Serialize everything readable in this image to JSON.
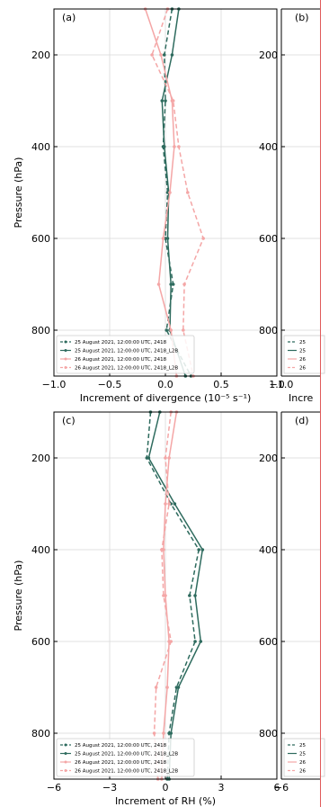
{
  "colors": {
    "green": "#2e6b5e",
    "pink": "#f4a6a6",
    "grid": "#d9d9d9",
    "axis": "#000000"
  },
  "chart_data": [
    {
      "panel_label": "(a)",
      "type": "line",
      "xlabel": "Increment of divergence (10⁻⁵ s⁻¹)",
      "ylabel": "Pressure (hPa)",
      "xlim": [
        -1.0,
        1.0
      ],
      "ylim": [
        900,
        100
      ],
      "xticks": [
        -1.0,
        -0.5,
        0.0,
        0.5,
        1.0
      ],
      "xtick_labels": [
        "−1.0",
        "−0.5",
        "0.0",
        "0.5",
        "1.0"
      ],
      "yticks": [
        200,
        400,
        600,
        800
      ],
      "y_inverted": true,
      "grid": true,
      "legend_loc": "lower-left",
      "series": [
        {
          "name": "25 August 2021, 12:00:00 UTC, 2418",
          "style": "dashed",
          "color": "#2e6b5e",
          "x": [
            0.06,
            -0.01,
            0.0,
            -0.02,
            0.02,
            0.0,
            0.07,
            0.01,
            0.23
          ],
          "y": [
            100,
            200,
            300,
            400,
            500,
            600,
            700,
            800,
            900
          ]
        },
        {
          "name": "25 August 2021, 12:00:00 UTC, 2418_L2B",
          "style": "solid",
          "color": "#2e6b5e",
          "x": [
            0.12,
            0.06,
            -0.03,
            -0.01,
            0.03,
            0.02,
            0.05,
            0.04,
            0.18
          ],
          "y": [
            100,
            200,
            300,
            400,
            500,
            600,
            700,
            800,
            900
          ]
        },
        {
          "name": "26 August 2021, 12:00:00 UTC, 2418",
          "style": "solid",
          "color": "#f4a6a6",
          "x": [
            -0.18,
            -0.04,
            0.06,
            0.08,
            0.04,
            -0.02,
            -0.06,
            0.05,
            0.1
          ],
          "y": [
            100,
            200,
            300,
            400,
            500,
            600,
            700,
            800,
            900
          ]
        },
        {
          "name": "26 August 2021, 12:00:00 UTC, 2418_L2B",
          "style": "dashed",
          "color": "#f4a6a6",
          "x": [
            0.02,
            -0.12,
            0.07,
            0.12,
            0.2,
            0.34,
            0.17,
            0.16,
            0.25
          ],
          "y": [
            100,
            200,
            300,
            400,
            500,
            600,
            700,
            800,
            900
          ]
        }
      ]
    },
    {
      "panel_label": "(c)",
      "type": "line",
      "xlabel": "Increment of RH (%)",
      "ylabel": "Pressure (hPa)",
      "xlim": [
        -6,
        6
      ],
      "ylim": [
        900,
        100
      ],
      "xticks": [
        -6,
        -3,
        0,
        3,
        6
      ],
      "xtick_labels": [
        "−6",
        "−3",
        "0",
        "3",
        "6"
      ],
      "yticks": [
        200,
        400,
        600,
        800
      ],
      "y_inverted": true,
      "grid": true,
      "legend_loc": "lower-left",
      "series": [
        {
          "name": "25 August 2021, 12:00:00 UTC, 2418",
          "style": "dashed",
          "color": "#2e6b5e",
          "x": [
            -0.8,
            -1.0,
            0.3,
            1.8,
            1.3,
            1.6,
            0.6,
            0.2,
            0.1
          ],
          "y": [
            100,
            200,
            300,
            400,
            500,
            600,
            700,
            800,
            900
          ]
        },
        {
          "name": "25 August 2021, 12:00:00 UTC, 2418_L2B",
          "style": "solid",
          "color": "#2e6b5e",
          "x": [
            -0.3,
            -0.9,
            0.5,
            2.0,
            1.6,
            1.9,
            0.7,
            0.3,
            0.2
          ],
          "y": [
            100,
            200,
            300,
            400,
            500,
            600,
            700,
            800,
            900
          ]
        },
        {
          "name": "26 August 2021, 12:00:00 UTC, 2418",
          "style": "solid",
          "color": "#f4a6a6",
          "x": [
            0.6,
            0.2,
            0.0,
            -0.1,
            0.0,
            0.2,
            0.1,
            -0.1,
            -0.2
          ],
          "y": [
            100,
            200,
            300,
            400,
            500,
            600,
            700,
            800,
            900
          ]
        },
        {
          "name": "26 August 2021, 12:00:00 UTC, 2418_L2B",
          "style": "dashed",
          "color": "#f4a6a6",
          "x": [
            0.3,
            0.0,
            0.2,
            -0.2,
            -0.1,
            0.3,
            -0.5,
            -0.6,
            -0.4
          ],
          "y": [
            100,
            200,
            300,
            400,
            500,
            600,
            700,
            800,
            900
          ]
        }
      ]
    }
  ],
  "partial_panels": [
    {
      "panel_label": "(b)",
      "yticks": [
        200,
        400,
        600,
        800
      ],
      "xtick_labels": [
        "−1.0"
      ],
      "xlabel_fragment": "Incre",
      "legend_fragments": [
        "25",
        "25",
        "26",
        "26"
      ]
    },
    {
      "panel_label": "(d)",
      "yticks": [
        200,
        400,
        600,
        800
      ],
      "xtick_labels": [
        "−6"
      ],
      "xlabel_fragment": "",
      "legend_fragments": [
        "25",
        "25",
        "26",
        "26"
      ]
    }
  ]
}
